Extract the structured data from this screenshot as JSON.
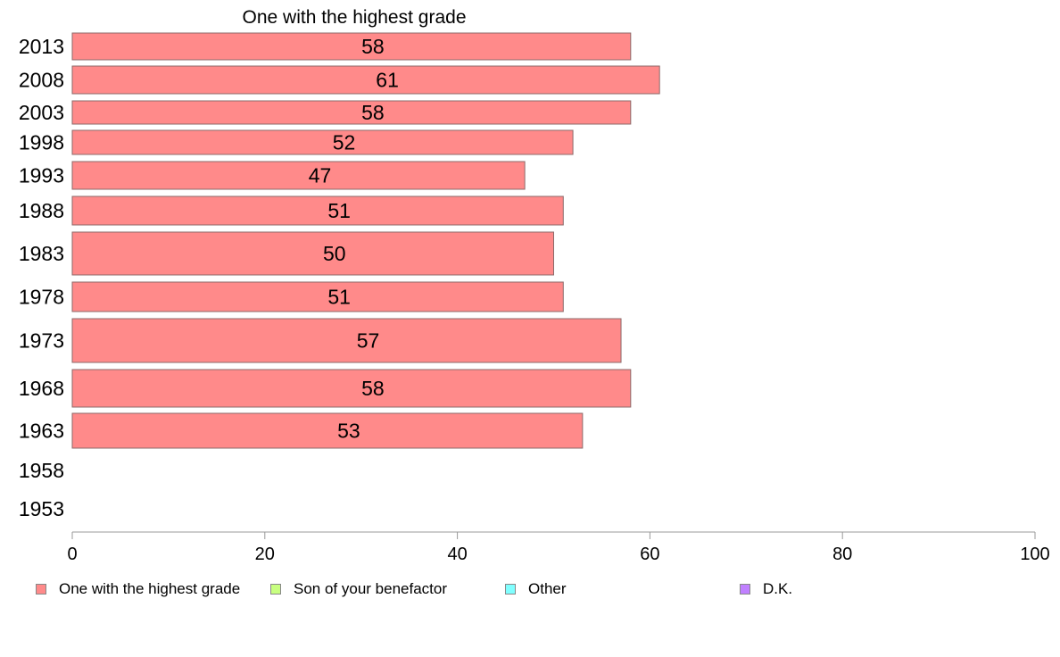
{
  "chart_data": {
    "type": "bar",
    "orientation": "horizontal",
    "title": "One with the highest grade",
    "categories": [
      "2013",
      "2008",
      "2003",
      "1998",
      "1993",
      "1988",
      "1983",
      "1978",
      "1973",
      "1968",
      "1963",
      "1958",
      "1953"
    ],
    "series": [
      {
        "name": "One with the highest grade",
        "color": "#ff8a8a",
        "values": [
          58,
          61,
          58,
          52,
          47,
          51,
          50,
          51,
          57,
          58,
          53,
          null,
          null
        ]
      }
    ],
    "xlim": [
      0,
      100
    ],
    "xticks": [
      "0",
      "20",
      "40",
      "60",
      "80",
      "100"
    ],
    "grid": false,
    "legend_position": "bottom",
    "legend": [
      {
        "label": "One with the highest grade",
        "color": "#ff8a8a"
      },
      {
        "label": "Son of your benefactor",
        "color": "#c8ff80"
      },
      {
        "label": "Other",
        "color": "#80ffff"
      },
      {
        "label": "D.K.",
        "color": "#c080ff"
      }
    ]
  }
}
